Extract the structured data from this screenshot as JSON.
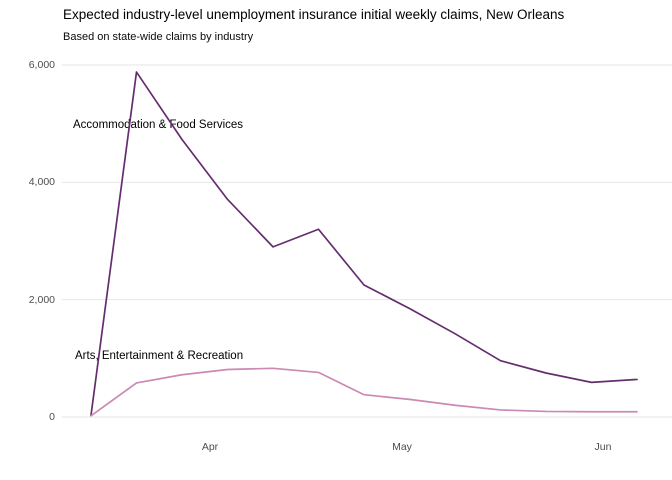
{
  "chart": {
    "title": "Expected industry-level unemployment insurance initial weekly claims, New Orleans",
    "subtitle": "Based on state-wide claims by industry"
  },
  "chart_data": {
    "type": "line",
    "x": [
      "Mar 14",
      "Mar 21",
      "Mar 28",
      "Apr 4",
      "Apr 11",
      "Apr 18",
      "Apr 25",
      "May 2",
      "May 9",
      "May 16",
      "May 23",
      "May 30",
      "Jun 6"
    ],
    "series": [
      {
        "name": "Accommodation & Food Services",
        "color": "#652d70",
        "values": [
          30,
          5880,
          4730,
          3710,
          2900,
          3200,
          2250,
          1850,
          1420,
          960,
          750,
          590,
          640
        ]
      },
      {
        "name": "Arts, Entertainment & Recreation",
        "color": "#cb89b3",
        "values": [
          20,
          580,
          720,
          810,
          830,
          760,
          380,
          300,
          200,
          120,
          95,
          90,
          90
        ]
      }
    ],
    "title": "Expected industry-level unemployment insurance initial weekly claims, New Orleans",
    "subtitle": "Based on state-wide claims by industry",
    "xlabel": "",
    "ylabel": "",
    "ylim": [
      0,
      6000
    ],
    "y_ticks": [
      0,
      2000,
      4000,
      6000
    ],
    "y_tick_labels": [
      "0",
      "2,000",
      "4,000",
      "6,000"
    ],
    "x_tick_labels": [
      "Apr",
      "May",
      "Jun"
    ],
    "grid": "horizontal-only",
    "legend": "direct-labels-on-chart",
    "grid_color": "#e6e6e6",
    "axis_text_color": "#4d4d4d"
  }
}
